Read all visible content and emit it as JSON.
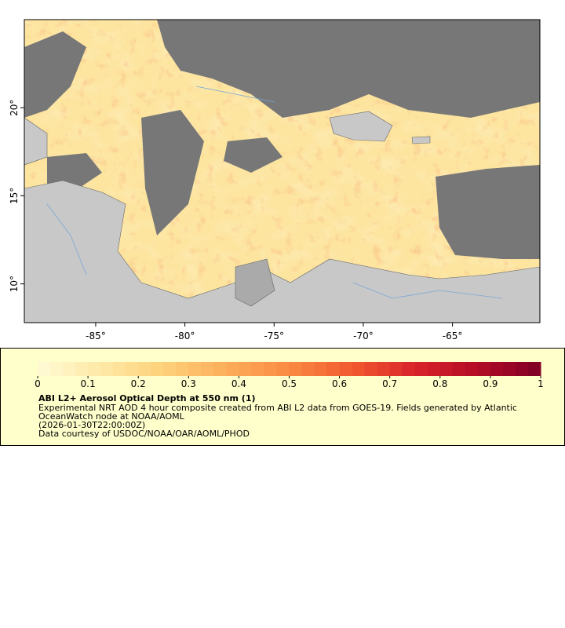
{
  "map": {
    "xlim": [
      -89,
      -60.1
    ],
    "ylim": [
      7.8,
      25
    ],
    "xticks": [
      {
        "value": -85,
        "label": "-85°"
      },
      {
        "value": -80,
        "label": "-80°"
      },
      {
        "value": -75,
        "label": "-75°"
      },
      {
        "value": -70,
        "label": "-70°"
      },
      {
        "value": -65,
        "label": "-65°"
      }
    ],
    "yticks": [
      {
        "value": 10,
        "label": "10°"
      },
      {
        "value": 15,
        "label": "15°"
      },
      {
        "value": 20,
        "label": "20°"
      }
    ]
  },
  "colorbar": {
    "range": [
      0,
      1
    ],
    "ticks": [
      0,
      0.1,
      0.2,
      0.3,
      0.4,
      0.5,
      0.6,
      0.7,
      0.8,
      0.9,
      1
    ],
    "colors": [
      "#fffbd6",
      "#fee9a6",
      "#fdd07a",
      "#fcae5a",
      "#f98a42",
      "#f1592f",
      "#d9242a",
      "#b30c26",
      "#7f0026"
    ]
  },
  "legend": {
    "title": "ABI L2+ Aerosol Optical Depth at 550 nm (1)",
    "description": "Experimental NRT AOD 4 hour composite created from ABI L2 data from GOES-19. Fields generated by Atlantic OceanWatch node at NOAA/AOML",
    "time": "(2026-01-30T22:00:00Z)",
    "credit": "Data courtesy of USDOC/NOAA/OAR/AOML/PHOD"
  }
}
